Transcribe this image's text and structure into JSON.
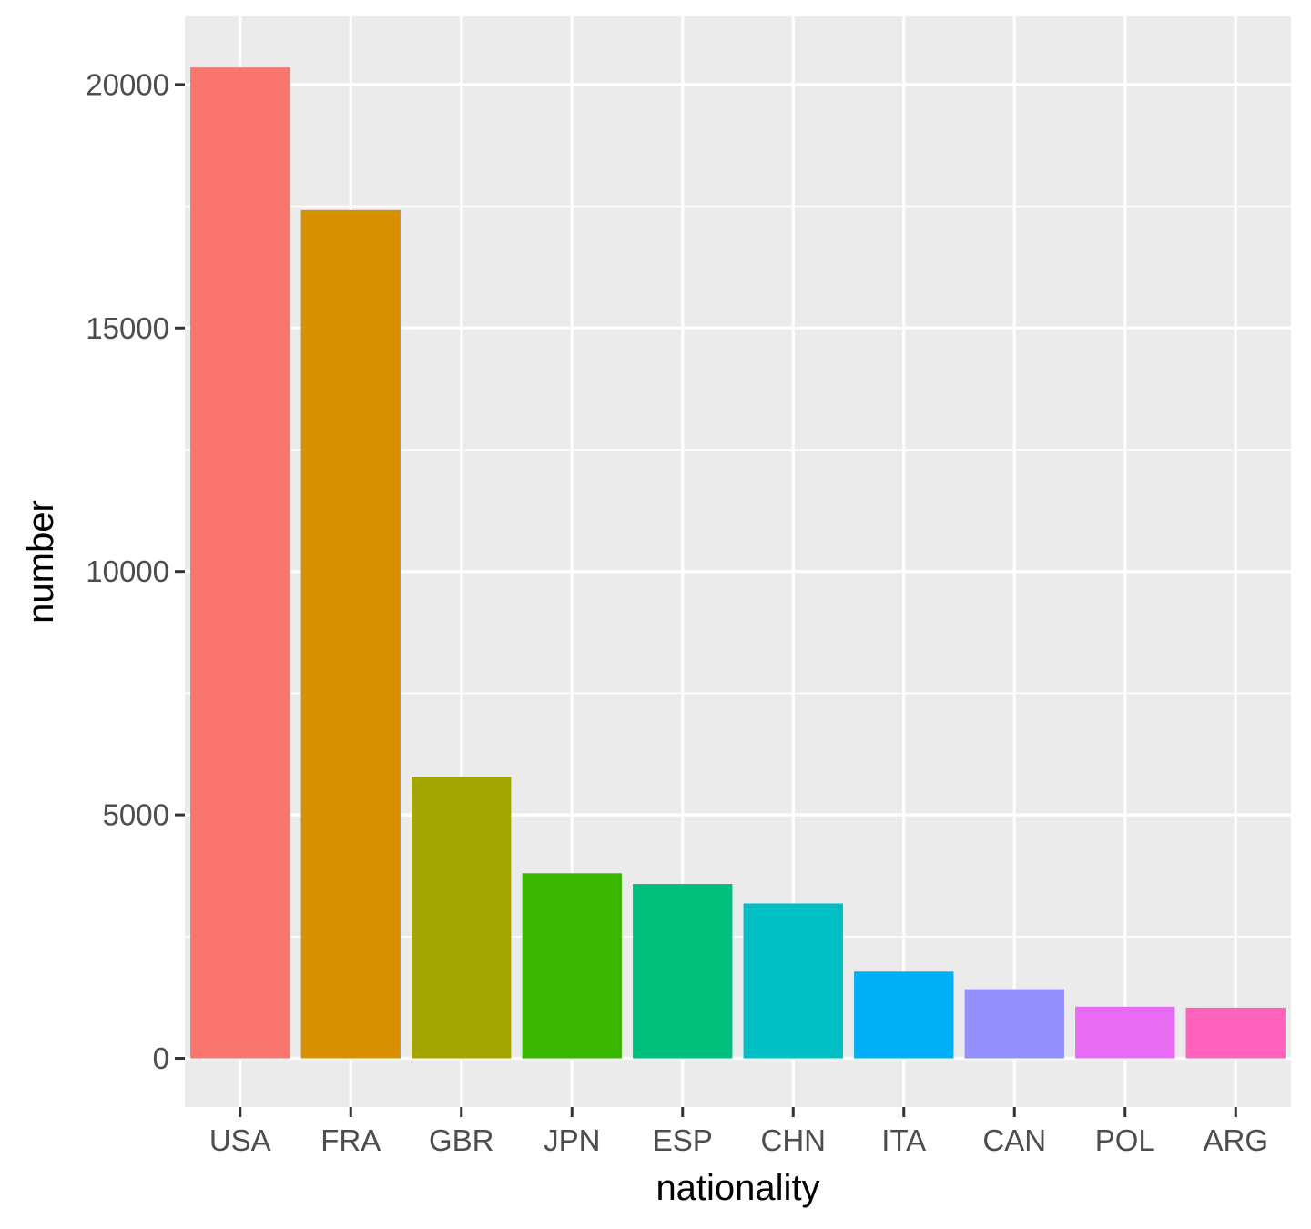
{
  "chart_data": {
    "type": "bar",
    "categories": [
      "USA",
      "FRA",
      "GBR",
      "JPN",
      "ESP",
      "CHN",
      "ITA",
      "CAN",
      "POL",
      "ARG"
    ],
    "values": [
      20350,
      17420,
      5780,
      3800,
      3580,
      3180,
      1780,
      1420,
      1060,
      1040
    ],
    "colors": [
      "#F8766D",
      "#D89000",
      "#A3A500",
      "#39B600",
      "#00BF7D",
      "#00BFC4",
      "#00B0F6",
      "#9590FF",
      "#E76BF3",
      "#FF62BC"
    ],
    "title": "",
    "xlabel": "nationality",
    "ylabel": "number",
    "ylim": [
      -1000,
      21400
    ],
    "yticks": [
      0,
      5000,
      10000,
      15000,
      20000
    ],
    "ytick_labels": [
      "0",
      "5000",
      "10000",
      "15000",
      "20000"
    ],
    "grid": true,
    "legend": "none",
    "panel_background": "#EBEBEB",
    "grid_color": "#FFFFFF"
  }
}
